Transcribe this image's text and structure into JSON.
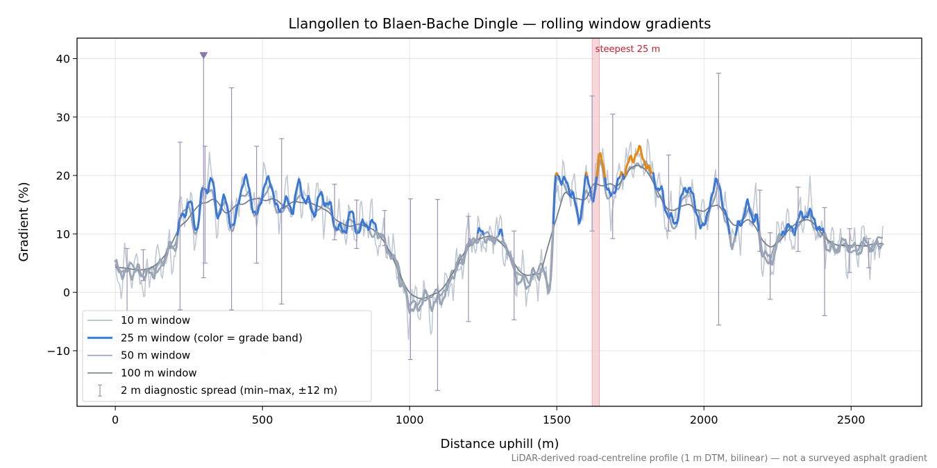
{
  "chart_data": {
    "type": "line",
    "title": "Llangollen to Blaen-Bache Dingle — rolling window gradients",
    "xlabel": "Distance uphill (m)",
    "ylabel": "Gradient (%)",
    "xlim": [
      -130,
      2740
    ],
    "ylim": [
      -19.5,
      43.5
    ],
    "xticks": [
      0,
      500,
      1000,
      1500,
      2000,
      2500
    ],
    "xtick_labels": [
      "0",
      "500",
      "1000",
      "1500",
      "2000",
      "2500"
    ],
    "yticks": [
      -10,
      0,
      10,
      20,
      30,
      40
    ],
    "ytick_labels": [
      "−10",
      "0",
      "10",
      "20",
      "30",
      "40"
    ],
    "grid": true,
    "legend_position": "lower-left",
    "footnote": "LiDAR-derived road-centreline profile (1 m DTM, bilinear) — not a surveyed asphalt gradient",
    "annotations": {
      "steepest_label": "steepest 25 m",
      "steepest_span": [
        1620,
        1645
      ],
      "max_marker": {
        "x": 300,
        "y": 40.5
      }
    },
    "colors": {
      "w10": "#aab6c4",
      "w25": "#3a78d8",
      "w25_orange": "#e8870a",
      "w25_red": "#c41e2e",
      "w50": "#9aa6b6",
      "w100": "#767f8c",
      "spread": "#9b90b8",
      "steep_band": "#f6c9cf"
    },
    "legend": [
      {
        "key": "w10",
        "label": "10 m window"
      },
      {
        "key": "w25",
        "label": "25 m window (color = grade band)"
      },
      {
        "key": "w50",
        "label": "50 m window"
      },
      {
        "key": "w100",
        "label": "100 m window"
      },
      {
        "key": "spread",
        "label": "2 m diagnostic spread (min–max, ±12 m)"
      }
    ],
    "series_anchors": {
      "x": [
        0,
        50,
        100,
        150,
        200,
        225,
        250,
        275,
        300,
        325,
        350,
        375,
        400,
        425,
        450,
        475,
        500,
        525,
        550,
        575,
        600,
        625,
        650,
        675,
        700,
        725,
        750,
        775,
        800,
        825,
        850,
        875,
        900,
        925,
        950,
        975,
        1000,
        1025,
        1050,
        1075,
        1100,
        1125,
        1150,
        1175,
        1200,
        1225,
        1250,
        1275,
        1300,
        1325,
        1350,
        1375,
        1400,
        1425,
        1450,
        1475,
        1500,
        1525,
        1550,
        1575,
        1600,
        1625,
        1650,
        1675,
        1700,
        1725,
        1750,
        1775,
        1800,
        1825,
        1850,
        1875,
        1900,
        1925,
        1950,
        1975,
        2000,
        2025,
        2050,
        2075,
        2100,
        2125,
        2150,
        2175,
        2200,
        2225,
        2250,
        2275,
        2300,
        2325,
        2350,
        2375,
        2400,
        2425,
        2450,
        2475,
        2500,
        2525,
        2550,
        2575,
        2600
      ],
      "w25": [
        4,
        3.5,
        3,
        4.5,
        8,
        13,
        15,
        11,
        18,
        19,
        13,
        16,
        11,
        17,
        19,
        13,
        17,
        19,
        14,
        16,
        14,
        18,
        16,
        14,
        16,
        15,
        12,
        10,
        13,
        11,
        12,
        11,
        10,
        8,
        5,
        1,
        -2,
        -3,
        -1,
        -2,
        -1,
        0,
        3,
        6,
        8,
        9,
        10,
        9,
        10,
        8,
        5,
        2,
        1,
        3,
        4,
        1,
        20,
        19,
        18,
        12,
        19,
        17,
        24,
        16,
        18,
        21,
        22,
        24,
        23,
        20,
        17,
        14,
        12,
        16,
        18,
        14,
        11,
        16,
        19,
        13,
        8,
        12,
        15,
        13,
        7,
        5,
        9,
        11,
        10,
        13,
        14,
        12,
        10,
        8,
        7.5,
        8,
        8,
        7.5,
        8,
        7.5,
        9
      ]
    },
    "spread_bars": [
      {
        "x": 40,
        "min": -4,
        "max": 7.5
      },
      {
        "x": 95,
        "min": 2,
        "max": 7.3
      },
      {
        "x": 220,
        "min": -3,
        "max": 25.7
      },
      {
        "x": 300,
        "min": 2.5,
        "max": 40.5
      },
      {
        "x": 305,
        "min": 5,
        "max": 25
      },
      {
        "x": 395,
        "min": -3,
        "max": 35
      },
      {
        "x": 480,
        "min": 5,
        "max": 25
      },
      {
        "x": 565,
        "min": -2,
        "max": 26.3
      },
      {
        "x": 745,
        "min": 9,
        "max": 18.5
      },
      {
        "x": 820,
        "min": 7.5,
        "max": 15.8
      },
      {
        "x": 915,
        "min": 8,
        "max": 14
      },
      {
        "x": 1003,
        "min": -11.5,
        "max": 16
      },
      {
        "x": 1095,
        "min": -16.8,
        "max": 15.9
      },
      {
        "x": 1200,
        "min": -5,
        "max": 13
      },
      {
        "x": 1355,
        "min": -4.7,
        "max": 10.5
      },
      {
        "x": 1620,
        "min": 10.5,
        "max": 33.6
      },
      {
        "x": 1690,
        "min": 9.2,
        "max": 30.5
      },
      {
        "x": 1880,
        "min": 10.5,
        "max": 23.5
      },
      {
        "x": 2050,
        "min": -5.6,
        "max": 37.5
      },
      {
        "x": 2190,
        "min": 7,
        "max": 17.5
      },
      {
        "x": 2225,
        "min": -1.2,
        "max": 10.2
      },
      {
        "x": 2320,
        "min": 7,
        "max": 18
      },
      {
        "x": 2410,
        "min": -4,
        "max": 14.5
      },
      {
        "x": 2495,
        "min": 3.4,
        "max": 10.9
      },
      {
        "x": 2560,
        "min": 4.2,
        "max": 9.2
      }
    ]
  }
}
